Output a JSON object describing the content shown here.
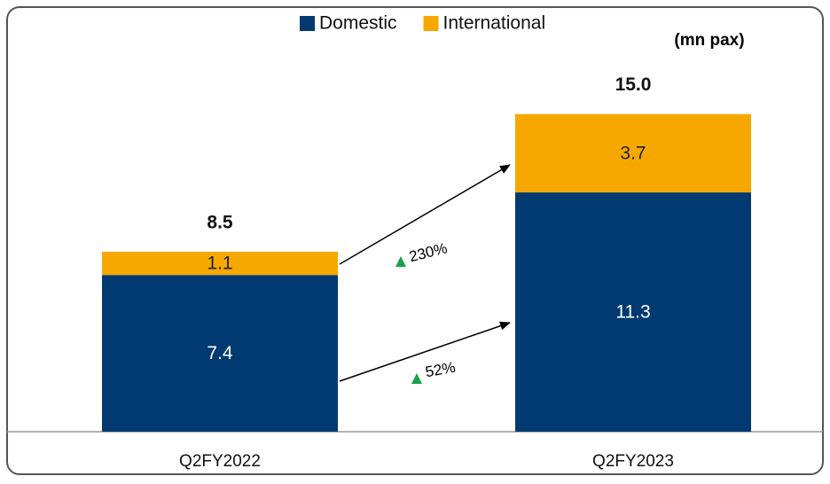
{
  "chart_data": {
    "type": "stacked_bar",
    "unit": "(mn pax)",
    "categories": [
      "Q2FY2022",
      "Q2FY2023"
    ],
    "series": [
      {
        "name": "Domestic",
        "color": "#003a70",
        "values": [
          7.4,
          11.3
        ]
      },
      {
        "name": "International",
        "color": "#f7a800",
        "values": [
          1.1,
          3.7
        ]
      }
    ],
    "totals": {
      "values": [
        8.5,
        15.0
      ],
      "value_labels": [
        "8.5",
        "15.0"
      ]
    },
    "annotations": [
      "230%",
      "52%"
    ],
    "ylim": [
      0,
      18
    ],
    "legend": "top"
  }
}
